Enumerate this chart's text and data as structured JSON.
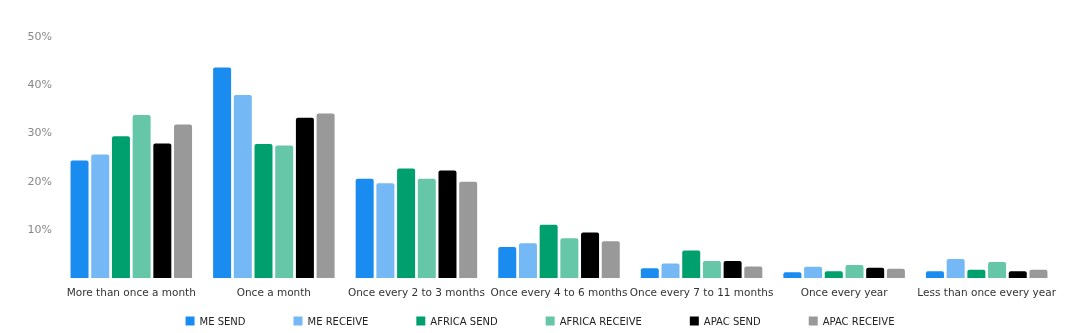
{
  "chart_data": {
    "type": "bar",
    "categories": [
      "More than once a month",
      "Once a month",
      "Once every 2 to 3 months",
      "Once every 4 to 6 months",
      "Once every 7 to 11 months",
      "Once every year",
      "Less than once every year"
    ],
    "series": [
      {
        "name": "ME SEND",
        "color": "#1a8cf0",
        "values": [
          24.3,
          43.5,
          20.5,
          6.4,
          2.0,
          1.2,
          1.4
        ]
      },
      {
        "name": "ME RECEIVE",
        "color": "#74b9f5",
        "values": [
          25.5,
          37.8,
          19.6,
          7.2,
          3.0,
          2.3,
          3.9
        ]
      },
      {
        "name": "AFRICA SEND",
        "color": "#00a06e",
        "values": [
          29.3,
          27.7,
          22.6,
          11.0,
          5.7,
          1.4,
          1.7
        ]
      },
      {
        "name": "AFRICA RECEIVE",
        "color": "#66c7a8",
        "values": [
          33.7,
          27.4,
          20.5,
          8.2,
          3.5,
          2.7,
          3.3
        ]
      },
      {
        "name": "APAC SEND",
        "color": "#000000",
        "values": [
          27.8,
          33.1,
          22.2,
          9.4,
          3.5,
          2.1,
          1.4
        ]
      },
      {
        "name": "APAC RECEIVE",
        "color": "#999999",
        "values": [
          31.7,
          34.0,
          19.9,
          7.6,
          2.4,
          1.9,
          1.7
        ]
      }
    ],
    "ylim": [
      0,
      50
    ],
    "yticks": [
      {
        "value": 10,
        "label": "10%"
      },
      {
        "value": 20,
        "label": "20%"
      },
      {
        "value": 30,
        "label": "30%"
      },
      {
        "value": 40,
        "label": "40%"
      },
      {
        "value": 50,
        "label": "50%"
      }
    ],
    "legend": "bottom"
  }
}
